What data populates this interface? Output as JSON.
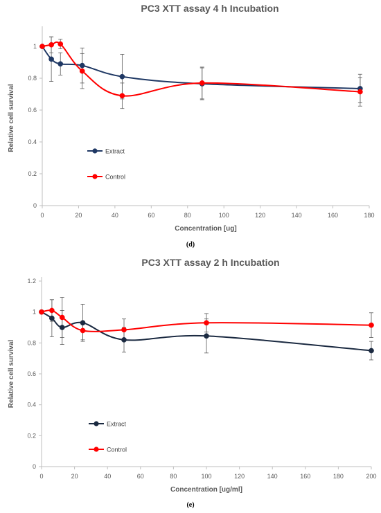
{
  "chart_data": [
    {
      "type": "line",
      "title": "PC3 XTT assay 4 h Incubation",
      "xlabel": "Concentration [ug]",
      "ylabel": "Relative cell survival",
      "panel_label": "(d)",
      "xlim": [
        0,
        180
      ],
      "ylim": [
        0,
        1.1
      ],
      "xticks": [
        0,
        20,
        40,
        60,
        80,
        100,
        120,
        140,
        160,
        180
      ],
      "yticks": [
        0,
        0.2,
        0.4,
        0.6,
        0.8,
        1
      ],
      "grid": false,
      "legend_position": "center-left",
      "series": [
        {
          "name": "Extract",
          "color": "#1f3864",
          "x": [
            0,
            5,
            10,
            22,
            44,
            88,
            175
          ],
          "y": [
            1.0,
            0.92,
            0.89,
            0.88,
            0.81,
            0.765,
            0.735
          ],
          "error": [
            0.0,
            0.14,
            0.07,
            0.11,
            0.14,
            0.1,
            0.09
          ]
        },
        {
          "name": "Control",
          "color": "#ff0000",
          "x": [
            0,
            5,
            10,
            22,
            44,
            88,
            175
          ],
          "y": [
            1.0,
            1.01,
            1.015,
            0.845,
            0.69,
            0.77,
            0.715
          ],
          "error": [
            0.0,
            0.05,
            0.03,
            0.11,
            0.08,
            0.1,
            0.09
          ]
        }
      ]
    },
    {
      "type": "line",
      "title": "PC3 XTT assay 2 h Incubation",
      "xlabel": "Concentration [ug/ml]",
      "ylabel": "Relative cell survival",
      "panel_label": "(e)",
      "xlim": [
        0,
        200
      ],
      "ylim": [
        0,
        1.2
      ],
      "xticks": [
        0,
        20,
        40,
        60,
        80,
        100,
        120,
        140,
        160,
        180,
        200
      ],
      "yticks": [
        0,
        0.2,
        0.4,
        0.6,
        0.8,
        1,
        1.2
      ],
      "grid": false,
      "legend_position": "center-left",
      "series": [
        {
          "name": "Extract",
          "color": "#1b2a41",
          "x": [
            0,
            6.25,
            12.5,
            25,
            50,
            100,
            200
          ],
          "y": [
            1.0,
            0.96,
            0.9,
            0.93,
            0.82,
            0.845,
            0.75
          ],
          "error": [
            0.0,
            0.12,
            0.11,
            0.12,
            0.08,
            0.11,
            0.06
          ]
        },
        {
          "name": "Control",
          "color": "#ff0000",
          "x": [
            0,
            6.25,
            12.5,
            25,
            50,
            100,
            200
          ],
          "y": [
            1.0,
            1.01,
            0.965,
            0.88,
            0.885,
            0.93,
            0.915
          ],
          "error": [
            0.0,
            0.07,
            0.13,
            0.06,
            0.07,
            0.06,
            0.08
          ]
        }
      ]
    }
  ]
}
